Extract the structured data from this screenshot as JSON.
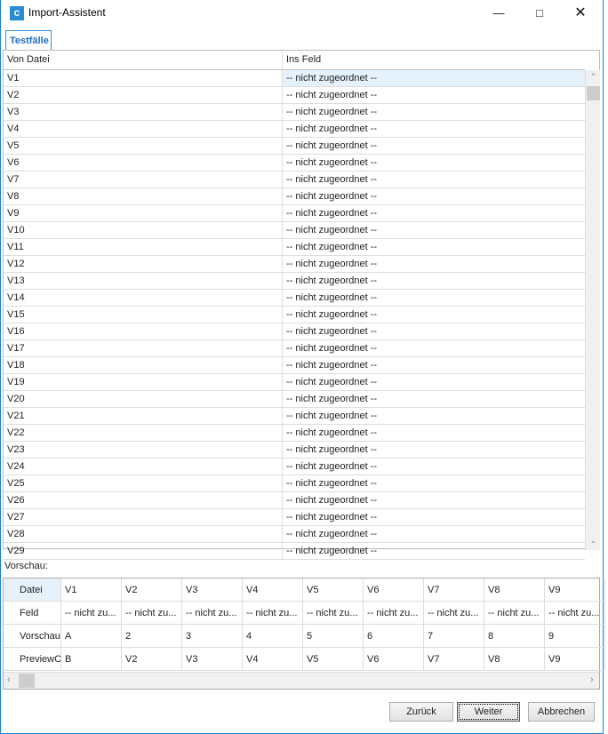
{
  "window": {
    "title": "Import-Assistent",
    "icon": "app-icon"
  },
  "tabs": [
    {
      "label": "Testfälle",
      "active": true
    }
  ],
  "mapping": {
    "headers": [
      "Von Datei",
      "Ins Feld"
    ],
    "rows": [
      [
        "V1",
        "-- nicht zugeordnet --"
      ],
      [
        "V2",
        "-- nicht zugeordnet --"
      ],
      [
        "V3",
        "-- nicht zugeordnet --"
      ],
      [
        "V4",
        "-- nicht zugeordnet --"
      ],
      [
        "V5",
        "-- nicht zugeordnet --"
      ],
      [
        "V6",
        "-- nicht zugeordnet --"
      ],
      [
        "V7",
        "-- nicht zugeordnet --"
      ],
      [
        "V8",
        "-- nicht zugeordnet --"
      ],
      [
        "V9",
        "-- nicht zugeordnet --"
      ],
      [
        "V10",
        "-- nicht zugeordnet --"
      ],
      [
        "V11",
        "-- nicht zugeordnet --"
      ],
      [
        "V12",
        "-- nicht zugeordnet --"
      ],
      [
        "V13",
        "-- nicht zugeordnet --"
      ],
      [
        "V14",
        "-- nicht zugeordnet --"
      ],
      [
        "V15",
        "-- nicht zugeordnet --"
      ],
      [
        "V16",
        "-- nicht zugeordnet --"
      ],
      [
        "V17",
        "-- nicht zugeordnet --"
      ],
      [
        "V18",
        "-- nicht zugeordnet --"
      ],
      [
        "V19",
        "-- nicht zugeordnet --"
      ],
      [
        "V20",
        "-- nicht zugeordnet --"
      ],
      [
        "V21",
        "-- nicht zugeordnet --"
      ],
      [
        "V22",
        "-- nicht zugeordnet --"
      ],
      [
        "V23",
        "-- nicht zugeordnet --"
      ],
      [
        "V24",
        "-- nicht zugeordnet --"
      ],
      [
        "V25",
        "-- nicht zugeordnet --"
      ],
      [
        "V26",
        "-- nicht zugeordnet --"
      ],
      [
        "V27",
        "-- nicht zugeordnet --"
      ],
      [
        "V28",
        "-- nicht zugeordnet --"
      ],
      [
        "V29",
        "-- nicht zugeordnet --"
      ]
    ],
    "selected_row": 0
  },
  "preview": {
    "label": "Vorschau:",
    "rows": [
      [
        "Datei",
        "V1",
        "V2",
        "V3",
        "V4",
        "V5",
        "V6",
        "V7",
        "V8",
        "V9"
      ],
      [
        "Feld",
        "-- nicht zu...",
        "-- nicht zu...",
        "-- nicht zu...",
        "-- nicht zu...",
        "-- nicht zu...",
        "-- nicht zu...",
        "-- nicht zu...",
        "-- nicht zu...",
        "-- nicht zu..."
      ],
      [
        "Vorschau",
        "A",
        "2",
        "3",
        "4",
        "5",
        "6",
        "7",
        "8",
        "9"
      ],
      [
        "PreviewC",
        "B",
        "V2",
        "V3",
        "V4",
        "V5",
        "V6",
        "V7",
        "V8",
        "V9"
      ]
    ]
  },
  "buttons": {
    "back": "Zurück",
    "next": "Weiter",
    "cancel": "Abbrechen"
  },
  "colors": {
    "accent": "#1883d7",
    "selected_row": "#e5f1fb"
  }
}
